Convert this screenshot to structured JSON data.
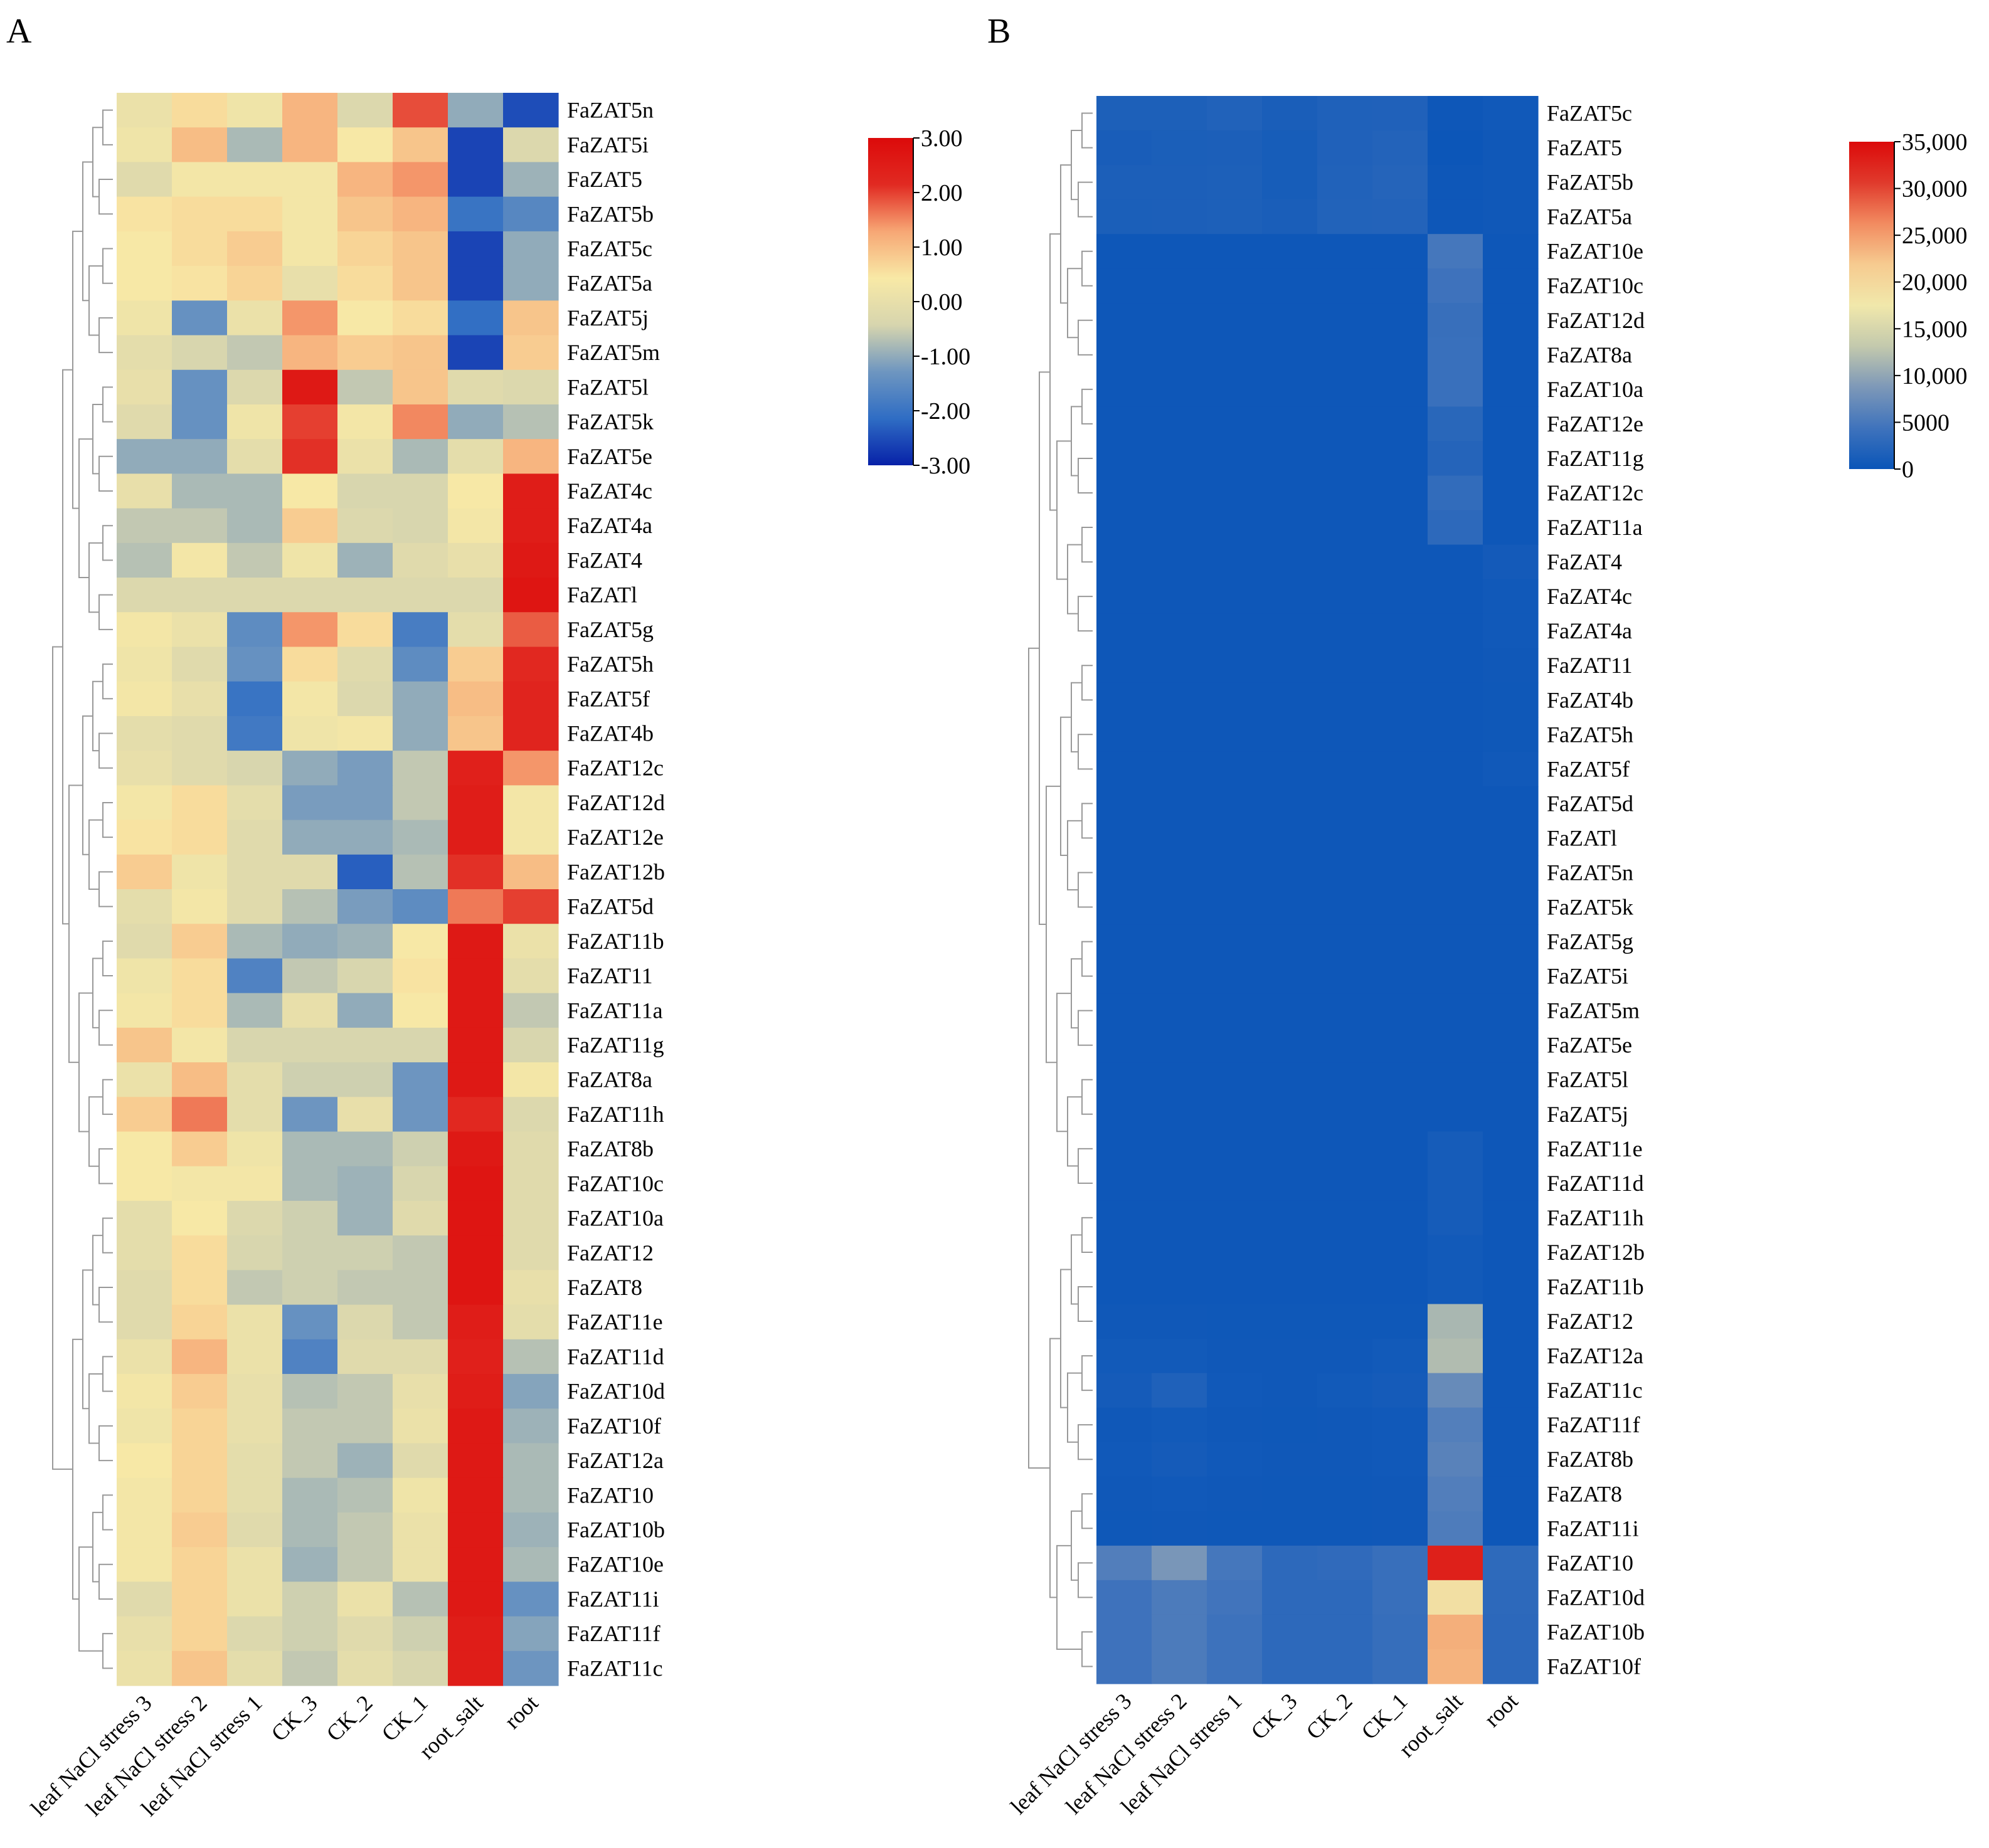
{
  "chart_data": [
    {
      "type": "heatmap",
      "panel_label": "A",
      "title": "",
      "columns": [
        "leaf NaCl stress 3",
        "leaf NaCl stress 2",
        "leaf NaCl stress 1",
        "CK_3",
        "CK_2",
        "CK_1",
        "root_salt",
        "root"
      ],
      "rows": [
        "FaZAT5n",
        "FaZAT5i",
        "FaZAT5",
        "FaZAT5b",
        "FaZAT5c",
        "FaZAT5a",
        "FaZAT5j",
        "FaZAT5m",
        "FaZAT5l",
        "FaZAT5k",
        "FaZAT5e",
        "FaZAT4c",
        "FaZAT4a",
        "FaZAT4",
        "FaZATl",
        "FaZAT5g",
        "FaZAT5h",
        "FaZAT5f",
        "FaZAT4b",
        "FaZAT12c",
        "FaZAT12d",
        "FaZAT12e",
        "FaZAT12b",
        "FaZAT5d",
        "FaZAT11b",
        "FaZAT11",
        "FaZAT11a",
        "FaZAT11g",
        "FaZAT8a",
        "FaZAT11h",
        "FaZAT8b",
        "FaZAT10c",
        "FaZAT10a",
        "FaZAT12",
        "FaZAT8",
        "FaZAT11e",
        "FaZAT11d",
        "FaZAT10d",
        "FaZAT10f",
        "FaZAT12a",
        "FaZAT10",
        "FaZAT10b",
        "FaZAT10e",
        "FaZAT11i",
        "FaZAT11f",
        "FaZAT11c"
      ],
      "values": [
        [
          0.1,
          0.6,
          0.2,
          1.1,
          -0.3,
          1.9,
          -1.0,
          -2.5
        ],
        [
          0.2,
          1.0,
          -0.8,
          1.1,
          0.4,
          0.9,
          -2.6,
          -0.3
        ],
        [
          -0.2,
          0.3,
          0.3,
          0.3,
          1.1,
          1.4,
          -2.6,
          -0.9
        ],
        [
          0.5,
          0.6,
          0.6,
          0.3,
          0.9,
          1.1,
          -2.0,
          -1.6
        ],
        [
          0.4,
          0.6,
          0.8,
          0.3,
          0.7,
          0.9,
          -2.6,
          -1.0
        ],
        [
          0.4,
          0.5,
          0.7,
          0.0,
          0.6,
          0.9,
          -2.6,
          -1.0
        ],
        [
          0.2,
          -1.4,
          0.1,
          1.4,
          0.4,
          0.6,
          -2.1,
          0.9
        ],
        [
          -0.1,
          -0.4,
          -0.6,
          1.1,
          0.8,
          0.9,
          -2.6,
          0.8
        ],
        [
          0.0,
          -1.4,
          -0.3,
          2.6,
          -0.6,
          0.9,
          -0.2,
          -0.3
        ],
        [
          -0.2,
          -1.4,
          0.2,
          2.0,
          0.3,
          1.5,
          -1.0,
          -0.7
        ],
        [
          -1.0,
          -1.0,
          -0.1,
          2.1,
          0.1,
          -0.8,
          -0.1,
          1.1
        ],
        [
          0.0,
          -0.8,
          -0.8,
          0.4,
          -0.4,
          -0.4,
          0.4,
          2.5
        ],
        [
          -0.6,
          -0.6,
          -0.8,
          0.8,
          -0.3,
          -0.4,
          0.3,
          2.5
        ],
        [
          -0.7,
          0.3,
          -0.6,
          0.2,
          -0.9,
          -0.2,
          0.0,
          2.6
        ],
        [
          -0.3,
          -0.3,
          -0.3,
          -0.3,
          -0.3,
          -0.3,
          -0.3,
          2.7
        ],
        [
          0.3,
          0.1,
          -1.5,
          1.4,
          0.6,
          -1.8,
          -0.1,
          1.8
        ],
        [
          0.2,
          -0.2,
          -1.4,
          0.6,
          -0.2,
          -1.5,
          0.8,
          2.2
        ],
        [
          0.3,
          0.0,
          -2.0,
          0.3,
          -0.3,
          -1.0,
          1.0,
          2.3
        ],
        [
          -0.1,
          -0.2,
          -1.9,
          0.2,
          0.3,
          -1.0,
          0.9,
          2.3
        ],
        [
          0.0,
          -0.2,
          -0.4,
          -1.0,
          -1.2,
          -0.6,
          2.4,
          1.4
        ],
        [
          0.3,
          0.6,
          -0.1,
          -1.2,
          -1.2,
          -0.6,
          2.5,
          0.3
        ],
        [
          0.5,
          0.6,
          -0.2,
          -1.0,
          -1.0,
          -0.8,
          2.5,
          0.3
        ],
        [
          0.8,
          0.2,
          -0.2,
          -0.2,
          -2.3,
          -0.7,
          2.1,
          1.0
        ],
        [
          -0.1,
          0.3,
          -0.2,
          -0.7,
          -1.2,
          -1.5,
          1.6,
          2.0
        ],
        [
          -0.2,
          0.8,
          -0.8,
          -1.0,
          -0.9,
          0.4,
          2.6,
          0.1
        ],
        [
          0.2,
          0.6,
          -1.7,
          -0.6,
          -0.4,
          0.5,
          2.6,
          -0.1
        ],
        [
          0.3,
          0.6,
          -0.8,
          0.0,
          -1.0,
          0.4,
          2.6,
          -0.6
        ],
        [
          0.9,
          0.3,
          -0.4,
          -0.4,
          -0.4,
          -0.4,
          2.6,
          -0.4
        ],
        [
          0.1,
          1.0,
          -0.1,
          -0.5,
          -0.5,
          -1.3,
          2.6,
          0.3
        ],
        [
          0.8,
          1.6,
          -0.1,
          -1.3,
          0.0,
          -1.3,
          2.2,
          -0.3
        ],
        [
          0.4,
          0.8,
          0.2,
          -0.8,
          -0.8,
          -0.5,
          2.6,
          -0.2
        ],
        [
          0.4,
          0.3,
          0.3,
          -0.8,
          -0.9,
          -0.4,
          2.7,
          -0.2
        ],
        [
          -0.1,
          0.4,
          -0.3,
          -0.5,
          -0.9,
          -0.2,
          2.7,
          -0.2
        ],
        [
          -0.1,
          0.6,
          -0.4,
          -0.5,
          -0.5,
          -0.6,
          2.7,
          -0.2
        ],
        [
          -0.2,
          0.6,
          -0.6,
          -0.5,
          -0.6,
          -0.6,
          2.7,
          0.0
        ],
        [
          -0.2,
          0.7,
          0.1,
          -1.4,
          -0.3,
          -0.6,
          2.5,
          -0.1
        ],
        [
          0.1,
          1.1,
          0.1,
          -1.7,
          -0.2,
          -0.2,
          2.4,
          -0.7
        ],
        [
          0.3,
          0.8,
          0.0,
          -0.7,
          -0.6,
          0.0,
          2.5,
          -1.1
        ],
        [
          0.2,
          0.7,
          0.0,
          -0.6,
          -0.6,
          0.1,
          2.6,
          -0.9
        ],
        [
          0.4,
          0.7,
          -0.1,
          -0.6,
          -0.9,
          -0.2,
          2.6,
          -0.8
        ],
        [
          0.3,
          0.7,
          -0.1,
          -0.8,
          -0.7,
          0.2,
          2.6,
          -0.8
        ],
        [
          0.3,
          0.8,
          -0.2,
          -0.8,
          -0.6,
          0.1,
          2.6,
          -0.9
        ],
        [
          0.3,
          0.7,
          0.1,
          -0.9,
          -0.6,
          0.1,
          2.6,
          -0.8
        ],
        [
          -0.2,
          0.7,
          0.1,
          -0.5,
          0.1,
          -0.7,
          2.6,
          -1.4
        ],
        [
          0.0,
          0.7,
          -0.3,
          -0.5,
          -0.2,
          -0.5,
          2.5,
          -1.1
        ],
        [
          0.1,
          0.9,
          -0.1,
          -0.6,
          -0.1,
          -0.4,
          2.5,
          -1.3
        ]
      ],
      "colorbar": {
        "min": -3,
        "max": 3,
        "ticks": [
          "3.00",
          "2.00",
          "1.00",
          "0.00",
          "-1.00",
          "-2.00",
          "-3.00"
        ],
        "colors": [
          "#0721a8",
          "#2f6dc4",
          "#6e96c0",
          "#d7d5ae",
          "#f8e9a6",
          "#f7a775",
          "#e12a22",
          "#dc0a0a"
        ]
      },
      "dendrogram": "hierarchical clustering of rows"
    },
    {
      "type": "heatmap",
      "panel_label": "B",
      "title": "",
      "columns": [
        "leaf NaCl stress 3",
        "leaf NaCl stress 2",
        "leaf NaCl stress 1",
        "CK_3",
        "CK_2",
        "CK_1",
        "root_salt",
        "root"
      ],
      "rows": [
        "FaZAT5c",
        "FaZAT5",
        "FaZAT5b",
        "FaZAT5a",
        "FaZAT10e",
        "FaZAT10c",
        "FaZAT12d",
        "FaZAT8a",
        "FaZAT10a",
        "FaZAT12e",
        "FaZAT11g",
        "FaZAT12c",
        "FaZAT11a",
        "FaZAT4",
        "FaZAT4c",
        "FaZAT4a",
        "FaZAT11",
        "FaZAT4b",
        "FaZAT5h",
        "FaZAT5f",
        "FaZAT5d",
        "FaZATl",
        "FaZAT5n",
        "FaZAT5k",
        "FaZAT5g",
        "FaZAT5i",
        "FaZAT5m",
        "FaZAT5e",
        "FaZAT5l",
        "FaZAT5j",
        "FaZAT11e",
        "FaZAT11d",
        "FaZAT11h",
        "FaZAT12b",
        "FaZAT11b",
        "FaZAT12",
        "FaZAT12a",
        "FaZAT11c",
        "FaZAT11f",
        "FaZAT8b",
        "FaZAT8",
        "FaZAT11i",
        "FaZAT10",
        "FaZAT10d",
        "FaZAT10b",
        "FaZAT10f"
      ],
      "values": [
        [
          1600,
          1600,
          1900,
          1300,
          1700,
          1800,
          300,
          600
        ],
        [
          1200,
          1400,
          1500,
          1100,
          1800,
          2100,
          200,
          500
        ],
        [
          1500,
          1500,
          1600,
          1100,
          1900,
          2200,
          300,
          500
        ],
        [
          1400,
          1500,
          1600,
          1300,
          2000,
          2100,
          300,
          500
        ],
        [
          300,
          300,
          300,
          300,
          300,
          300,
          4800,
          300
        ],
        [
          300,
          300,
          300,
          300,
          300,
          300,
          4300,
          300
        ],
        [
          300,
          300,
          300,
          300,
          300,
          300,
          3800,
          300
        ],
        [
          300,
          300,
          300,
          300,
          300,
          300,
          3900,
          300
        ],
        [
          300,
          300,
          300,
          300,
          300,
          300,
          3900,
          300
        ],
        [
          300,
          300,
          300,
          300,
          300,
          300,
          2600,
          300
        ],
        [
          300,
          300,
          300,
          300,
          300,
          300,
          2200,
          300
        ],
        [
          300,
          300,
          300,
          300,
          300,
          300,
          3300,
          300
        ],
        [
          300,
          300,
          300,
          300,
          300,
          300,
          2900,
          300
        ],
        [
          300,
          300,
          300,
          300,
          300,
          300,
          300,
          800
        ],
        [
          300,
          300,
          300,
          300,
          300,
          300,
          300,
          600
        ],
        [
          300,
          300,
          300,
          300,
          300,
          300,
          300,
          600
        ],
        [
          300,
          300,
          300,
          300,
          300,
          300,
          300,
          500
        ],
        [
          300,
          300,
          300,
          300,
          300,
          300,
          300,
          400
        ],
        [
          300,
          300,
          300,
          300,
          300,
          300,
          300,
          400
        ],
        [
          300,
          300,
          300,
          300,
          300,
          300,
          300,
          600
        ],
        [
          300,
          300,
          300,
          300,
          300,
          300,
          300,
          300
        ],
        [
          300,
          300,
          300,
          300,
          300,
          300,
          300,
          300
        ],
        [
          300,
          300,
          300,
          300,
          300,
          300,
          300,
          300
        ],
        [
          300,
          300,
          300,
          300,
          300,
          300,
          300,
          300
        ],
        [
          300,
          300,
          300,
          300,
          300,
          300,
          300,
          300
        ],
        [
          300,
          300,
          300,
          300,
          300,
          300,
          300,
          300
        ],
        [
          300,
          300,
          300,
          300,
          300,
          300,
          300,
          300
        ],
        [
          300,
          300,
          300,
          300,
          300,
          300,
          300,
          300
        ],
        [
          300,
          300,
          300,
          300,
          300,
          300,
          300,
          300
        ],
        [
          300,
          300,
          300,
          300,
          300,
          300,
          300,
          300
        ],
        [
          300,
          300,
          300,
          300,
          300,
          300,
          1000,
          300
        ],
        [
          300,
          300,
          300,
          300,
          300,
          300,
          1000,
          300
        ],
        [
          300,
          300,
          300,
          300,
          300,
          300,
          1000,
          300
        ],
        [
          300,
          300,
          300,
          300,
          300,
          300,
          700,
          300
        ],
        [
          300,
          300,
          300,
          300,
          300,
          300,
          700,
          300
        ],
        [
          500,
          500,
          400,
          400,
          400,
          400,
          11500,
          300
        ],
        [
          700,
          700,
          500,
          500,
          500,
          700,
          12000,
          300
        ],
        [
          900,
          1700,
          600,
          500,
          700,
          900,
          7200,
          300
        ],
        [
          500,
          700,
          500,
          400,
          500,
          600,
          5800,
          300
        ],
        [
          600,
          900,
          600,
          500,
          500,
          600,
          6200,
          300
        ],
        [
          500,
          600,
          500,
          400,
          400,
          500,
          5700,
          300
        ],
        [
          400,
          500,
          400,
          400,
          400,
          500,
          5400,
          300
        ],
        [
          5700,
          8500,
          4800,
          2900,
          3100,
          3800,
          33000,
          3000
        ],
        [
          4300,
          5300,
          4500,
          2900,
          2900,
          3800,
          18800,
          2900
        ],
        [
          4300,
          5300,
          4200,
          2900,
          2900,
          3600,
          23800,
          2800
        ],
        [
          4300,
          5300,
          4200,
          2900,
          2900,
          3600,
          23500,
          2800
        ]
      ],
      "colorbar": {
        "min": 0,
        "max": 35000,
        "ticks": [
          "35,000",
          "30,000",
          "25,000",
          "20,000",
          "15,000",
          "10,000",
          "5000",
          "0"
        ],
        "colors": [
          "#0a55b8",
          "#3f73bc",
          "#7d98b8",
          "#c3c9ad",
          "#f1e8ab",
          "#f6cb90",
          "#f28b60",
          "#e03a2c",
          "#dc0a0a"
        ]
      },
      "dendrogram": "hierarchical clustering of rows"
    }
  ]
}
